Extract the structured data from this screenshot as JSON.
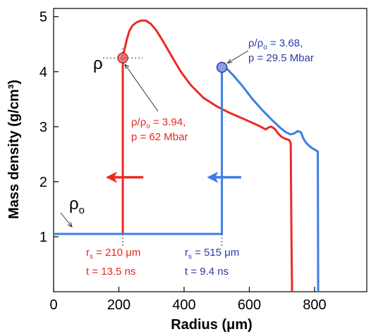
{
  "chart_data": {
    "type": "line",
    "xlabel": "Radius (μm)",
    "ylabel": "Mass density (g/cm³)",
    "xlim": [
      0,
      960
    ],
    "ylim": [
      0,
      5.15
    ],
    "xticks": [
      "0",
      "200",
      "400",
      "600",
      "800"
    ],
    "yticks": [
      "1",
      "2",
      "3",
      "4",
      "5"
    ],
    "xtick_values": [
      0,
      200,
      400,
      600,
      800
    ],
    "ytick_values": [
      1,
      2,
      3,
      4,
      5
    ],
    "colors": {
      "red": "#ec2b24",
      "blue": "#3d7ee6",
      "red_text": "#e02a22",
      "blue_text": "#2e3aa8"
    },
    "series": [
      {
        "color": "red",
        "points": [
          [
            212,
            1.05
          ],
          [
            212,
            4.25
          ],
          [
            218,
            4.42
          ],
          [
            225,
            4.6
          ],
          [
            232,
            4.74
          ],
          [
            242,
            4.84
          ],
          [
            255,
            4.9
          ],
          [
            268,
            4.93
          ],
          [
            283,
            4.93
          ],
          [
            298,
            4.87
          ],
          [
            315,
            4.75
          ],
          [
            335,
            4.56
          ],
          [
            360,
            4.3
          ],
          [
            390,
            4.0
          ],
          [
            420,
            3.76
          ],
          [
            460,
            3.52
          ],
          [
            500,
            3.37
          ],
          [
            540,
            3.25
          ],
          [
            575,
            3.16
          ],
          [
            610,
            3.07
          ],
          [
            635,
            3.0
          ],
          [
            650,
            2.95
          ],
          [
            660,
            2.99
          ],
          [
            668,
            3.0
          ],
          [
            678,
            2.96
          ],
          [
            688,
            2.88
          ],
          [
            698,
            2.82
          ],
          [
            710,
            2.78
          ],
          [
            722,
            2.76
          ],
          [
            727,
            2.7
          ],
          [
            729,
            1.0
          ],
          [
            731,
            0
          ]
        ]
      },
      {
        "color": "blue",
        "points": [
          [
            0,
            1.05
          ],
          [
            516,
            1.05
          ],
          [
            516,
            4.08
          ],
          [
            530,
            4.06
          ],
          [
            550,
            3.94
          ],
          [
            580,
            3.73
          ],
          [
            610,
            3.5
          ],
          [
            640,
            3.3
          ],
          [
            670,
            3.12
          ],
          [
            695,
            2.98
          ],
          [
            712,
            2.9
          ],
          [
            727,
            2.86
          ],
          [
            738,
            2.88
          ],
          [
            748,
            2.92
          ],
          [
            758,
            2.9
          ],
          [
            766,
            2.78
          ],
          [
            775,
            2.7
          ],
          [
            790,
            2.62
          ],
          [
            810,
            2.55
          ],
          [
            811,
            0
          ]
        ]
      }
    ],
    "markers": [
      {
        "color": "red",
        "x": 212,
        "y": 4.25
      },
      {
        "color": "blue",
        "x": 516,
        "y": 4.08
      }
    ],
    "arrows": [
      {
        "color": "red",
        "direction": "left",
        "x_from": 275,
        "x_to": 160,
        "y": 2.08
      },
      {
        "color": "blue",
        "direction": "left",
        "x_from": 575,
        "x_to": 470,
        "y": 2.08
      }
    ],
    "annotations": {
      "rho_symbol": "ρ",
      "rho0": {
        "main": "ρ",
        "sub": "o"
      },
      "red_ratio": {
        "pre": "ρ/ρ",
        "sub": "o",
        "post": " = 3.94,"
      },
      "red_pressure": "p = 62 Mbar",
      "blue_ratio": {
        "pre": "ρ/ρ",
        "sub": "o",
        "post": " = 3.68,"
      },
      "blue_pressure": "p = 29.5 Mbar",
      "red_rs": {
        "pre": "r",
        "sub": "s",
        "post": " = 210 μm"
      },
      "red_t": "t = 13.5 ns",
      "blue_rs": {
        "pre": "r",
        "sub": "s",
        "post": " = 515 μm"
      },
      "blue_t": "t = 9.4 ns"
    }
  }
}
